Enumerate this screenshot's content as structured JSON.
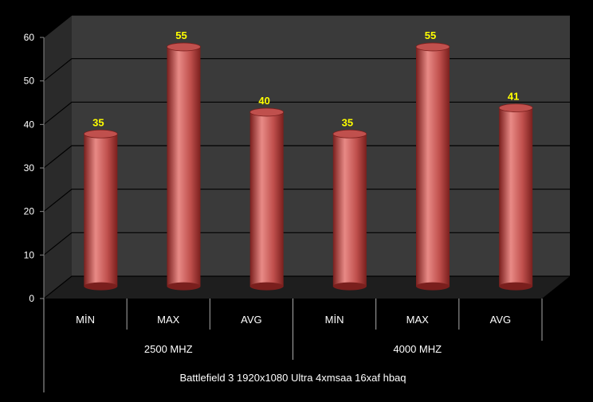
{
  "chart_data": {
    "type": "bar",
    "title": "",
    "xlabel": "",
    "ylabel": "",
    "ylim": [
      0,
      60
    ],
    "yticks": [
      0,
      10,
      20,
      30,
      40,
      50,
      60
    ],
    "grid": true,
    "categories": [
      "MİN",
      "MAX",
      "AVG",
      "MİN",
      "MAX",
      "AVG"
    ],
    "groups": [
      {
        "label": "2500 MHZ",
        "span": [
          0,
          2
        ]
      },
      {
        "label": "4000 MHZ",
        "span": [
          3,
          5
        ]
      }
    ],
    "footer": "Battlefield 3 1920x1080 Ultra 4xmsaa 16xaf hbaq",
    "values": [
      35,
      55,
      40,
      35,
      55,
      41
    ],
    "data_labels": [
      "35",
      "55",
      "40",
      "35",
      "55",
      "41"
    ],
    "colors": {
      "bar": "#c0504d",
      "bar_dark": "#7a1f1d",
      "bar_light": "#e88a86",
      "data_label": "#ffff00",
      "wall": "#3a3a3a",
      "wall_side": "#2a2a2a",
      "floor": "#1e1e1e",
      "gridline": "#000000",
      "text": "#ffffff"
    }
  }
}
